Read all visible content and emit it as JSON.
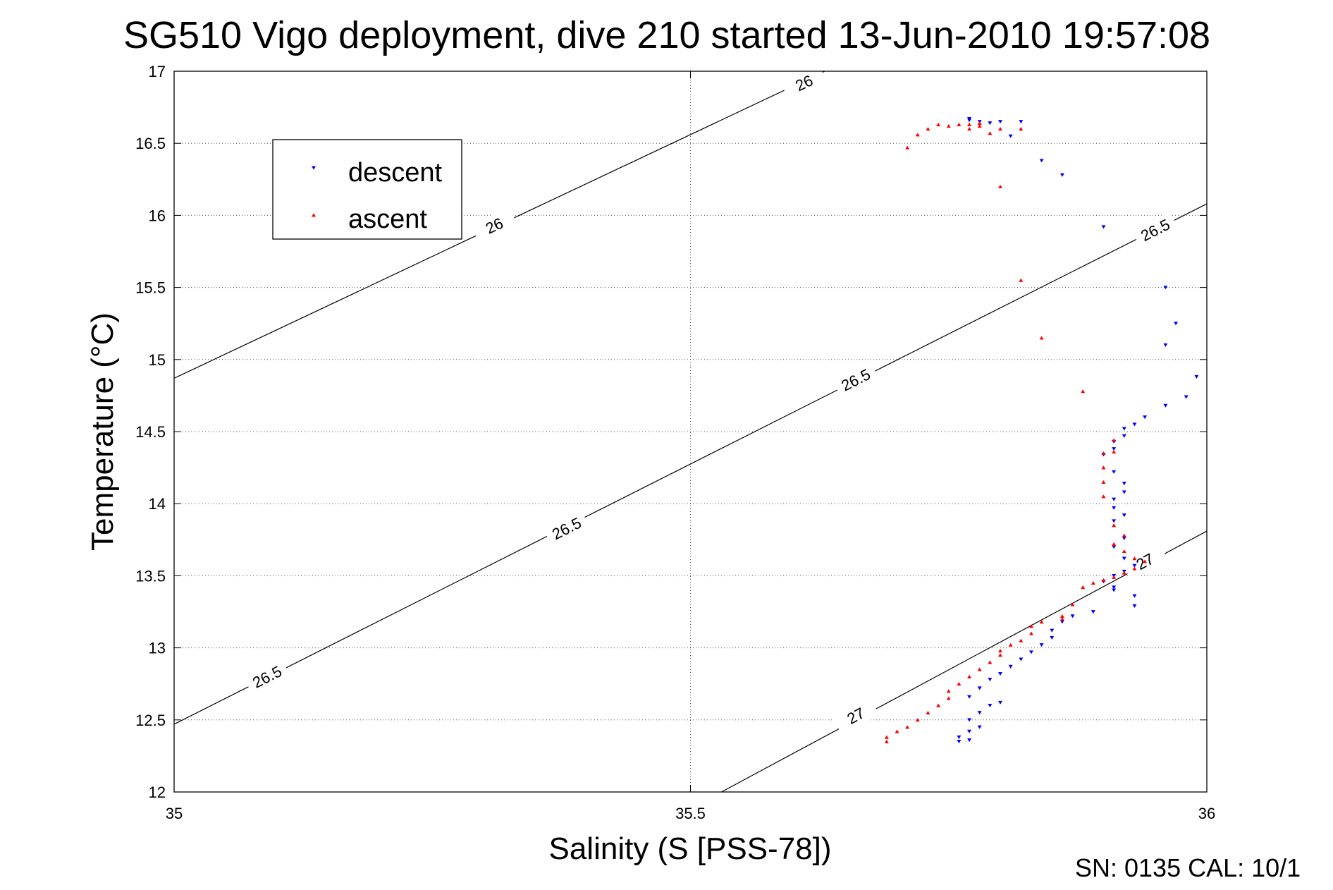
{
  "chart_data": {
    "type": "scatter",
    "title": "SG510 Vigo deployment, dive 210 started 13-Jun-2010 19:57:08",
    "xlabel": "Salinity (S [PSS-78])",
    "ylabel": "Temperature (°C)",
    "xlim": [
      35,
      36
    ],
    "ylim": [
      12,
      17
    ],
    "xticks": [
      35,
      35.5,
      36
    ],
    "yticks": [
      12,
      12.5,
      13,
      13.5,
      14,
      14.5,
      15,
      15.5,
      16,
      16.5,
      17
    ],
    "xtick_labels": [
      "35",
      "35.5",
      "36"
    ],
    "ytick_labels": [
      "12",
      "12.5",
      "13",
      "13.5",
      "14",
      "14.5",
      "15",
      "15.5",
      "16",
      "16.5",
      "17"
    ],
    "grid": true,
    "legend": {
      "position": "top-left",
      "entries": [
        "descent",
        "ascent"
      ]
    },
    "density_contours": [
      {
        "level": "26",
        "labels": [
          "26",
          "26"
        ],
        "line": [
          [
            35.0,
            14.87
          ],
          [
            35.63,
            17.0
          ]
        ],
        "label_at": [
          [
            35.31,
            15.93
          ],
          [
            35.61,
            16.92
          ]
        ]
      },
      {
        "level": "26.5",
        "labels": [
          "26.5",
          "26.5",
          "26.5",
          "26.5"
        ],
        "line": [
          [
            35.0,
            12.47
          ],
          [
            36.0,
            16.08
          ]
        ],
        "label_at": [
          [
            35.09,
            12.8
          ],
          [
            35.38,
            13.83
          ],
          [
            35.66,
            14.86
          ],
          [
            35.95,
            15.9
          ]
        ]
      },
      {
        "level": "27",
        "labels": [
          "27",
          "27"
        ],
        "line": [
          [
            35.53,
            12.0
          ],
          [
            36.0,
            13.81
          ]
        ],
        "label_at": [
          [
            35.66,
            12.53
          ],
          [
            35.94,
            13.6
          ]
        ]
      }
    ],
    "series": [
      {
        "name": "descent",
        "color": "#0000ff",
        "marker": "triangle-down",
        "points": [
          [
            35.77,
            16.66
          ],
          [
            35.77,
            16.67
          ],
          [
            35.78,
            16.65
          ],
          [
            35.79,
            16.64
          ],
          [
            35.8,
            16.65
          ],
          [
            35.81,
            16.55
          ],
          [
            35.82,
            16.65
          ],
          [
            35.84,
            16.38
          ],
          [
            35.86,
            16.28
          ],
          [
            35.9,
            15.92
          ],
          [
            35.96,
            15.5
          ],
          [
            35.97,
            15.25
          ],
          [
            35.96,
            15.1
          ],
          [
            35.99,
            14.88
          ],
          [
            35.98,
            14.74
          ],
          [
            35.96,
            14.68
          ],
          [
            35.94,
            14.6
          ],
          [
            35.93,
            14.55
          ],
          [
            35.92,
            14.52
          ],
          [
            35.92,
            14.47
          ],
          [
            35.91,
            14.43
          ],
          [
            35.91,
            14.38
          ],
          [
            35.9,
            14.34
          ],
          [
            35.91,
            14.22
          ],
          [
            35.92,
            14.14
          ],
          [
            35.92,
            14.08
          ],
          [
            35.91,
            14.03
          ],
          [
            35.91,
            13.97
          ],
          [
            35.92,
            13.92
          ],
          [
            35.91,
            13.88
          ],
          [
            35.92,
            13.76
          ],
          [
            35.91,
            13.7
          ],
          [
            35.92,
            13.62
          ],
          [
            35.93,
            13.57
          ],
          [
            35.92,
            13.53
          ],
          [
            35.91,
            13.5
          ],
          [
            35.9,
            13.46
          ],
          [
            35.91,
            13.42
          ],
          [
            35.93,
            13.36
          ],
          [
            35.93,
            13.29
          ],
          [
            35.91,
            13.4
          ],
          [
            35.89,
            13.25
          ],
          [
            35.87,
            13.22
          ],
          [
            35.86,
            13.18
          ],
          [
            35.85,
            13.12
          ],
          [
            35.85,
            13.07
          ],
          [
            35.84,
            13.02
          ],
          [
            35.83,
            12.97
          ],
          [
            35.82,
            12.92
          ],
          [
            35.81,
            12.87
          ],
          [
            35.8,
            12.82
          ],
          [
            35.79,
            12.78
          ],
          [
            35.78,
            12.72
          ],
          [
            35.77,
            12.66
          ],
          [
            35.8,
            12.62
          ],
          [
            35.79,
            12.6
          ],
          [
            35.78,
            12.55
          ],
          [
            35.77,
            12.5
          ],
          [
            35.78,
            12.45
          ],
          [
            35.77,
            12.42
          ],
          [
            35.76,
            12.38
          ],
          [
            35.77,
            12.36
          ],
          [
            35.76,
            12.35
          ]
        ]
      },
      {
        "name": "ascent",
        "color": "#ff0000",
        "marker": "triangle-up",
        "points": [
          [
            35.71,
            16.47
          ],
          [
            35.72,
            16.56
          ],
          [
            35.73,
            16.6
          ],
          [
            35.74,
            16.63
          ],
          [
            35.75,
            16.62
          ],
          [
            35.76,
            16.63
          ],
          [
            35.77,
            16.6
          ],
          [
            35.77,
            16.63
          ],
          [
            35.78,
            16.64
          ],
          [
            35.78,
            16.62
          ],
          [
            35.79,
            16.57
          ],
          [
            35.8,
            16.6
          ],
          [
            35.82,
            16.6
          ],
          [
            35.8,
            16.2
          ],
          [
            35.82,
            15.55
          ],
          [
            35.84,
            15.15
          ],
          [
            35.88,
            14.78
          ],
          [
            35.9,
            14.35
          ],
          [
            35.91,
            14.44
          ],
          [
            35.91,
            14.36
          ],
          [
            35.9,
            14.25
          ],
          [
            35.9,
            14.15
          ],
          [
            35.9,
            14.05
          ],
          [
            35.91,
            13.85
          ],
          [
            35.92,
            13.78
          ],
          [
            35.91,
            13.72
          ],
          [
            35.92,
            13.67
          ],
          [
            35.93,
            13.62
          ],
          [
            35.94,
            13.6
          ],
          [
            35.93,
            13.55
          ],
          [
            35.92,
            13.52
          ],
          [
            35.91,
            13.49
          ],
          [
            35.9,
            13.47
          ],
          [
            35.89,
            13.45
          ],
          [
            35.88,
            13.42
          ],
          [
            35.87,
            13.3
          ],
          [
            35.86,
            13.22
          ],
          [
            35.86,
            13.2
          ],
          [
            35.84,
            13.18
          ],
          [
            35.83,
            13.15
          ],
          [
            35.83,
            13.1
          ],
          [
            35.82,
            13.05
          ],
          [
            35.81,
            13.02
          ],
          [
            35.8,
            12.98
          ],
          [
            35.8,
            12.95
          ],
          [
            35.79,
            12.9
          ],
          [
            35.78,
            12.85
          ],
          [
            35.77,
            12.8
          ],
          [
            35.76,
            12.75
          ],
          [
            35.75,
            12.7
          ],
          [
            35.75,
            12.65
          ],
          [
            35.74,
            12.6
          ],
          [
            35.73,
            12.55
          ],
          [
            35.72,
            12.5
          ],
          [
            35.71,
            12.45
          ],
          [
            35.7,
            12.42
          ],
          [
            35.69,
            12.38
          ],
          [
            35.69,
            12.35
          ]
        ]
      }
    ]
  },
  "footer": {
    "text": "SN: 0135  CAL: 10/1"
  }
}
